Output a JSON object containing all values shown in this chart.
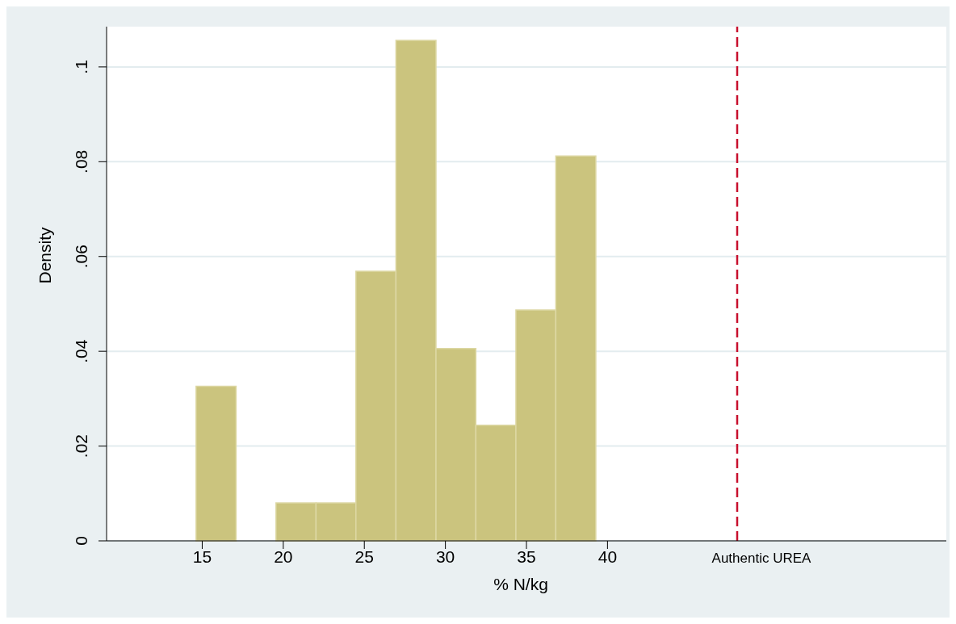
{
  "chart_data": {
    "type": "histogram",
    "bins": [
      14.62,
      17.09,
      19.55,
      22.02,
      24.48,
      26.95,
      29.42,
      31.88,
      34.35,
      36.81,
      39.28
    ],
    "values": [
      0.0326,
      0,
      0.008,
      0.008,
      0.0569,
      0.1056,
      0.0406,
      0.0244,
      0.0487,
      0.0812
    ],
    "color": "#cbc47e",
    "xlabel": "% N/kg",
    "ylabel": "Density",
    "xlim": [
      9.1,
      60.9
    ],
    "xticks": [
      15,
      20,
      25,
      30,
      35,
      40
    ],
    "ylim": [
      0,
      0.1085
    ],
    "yticks": [
      {
        "value": 0,
        "label": "0"
      },
      {
        "value": 0.02,
        "label": ".02"
      },
      {
        "value": 0.04,
        "label": ".04"
      },
      {
        "value": 0.06,
        "label": ".06"
      },
      {
        "value": 0.08,
        "label": ".08"
      },
      {
        "value": 0.1,
        "label": ".1"
      }
    ],
    "grid": "y",
    "ref_lines": [
      {
        "axis": "x",
        "value": 48,
        "label": "Authentic UREA",
        "color": "#c8102e",
        "line_style": "dashed"
      }
    ]
  }
}
